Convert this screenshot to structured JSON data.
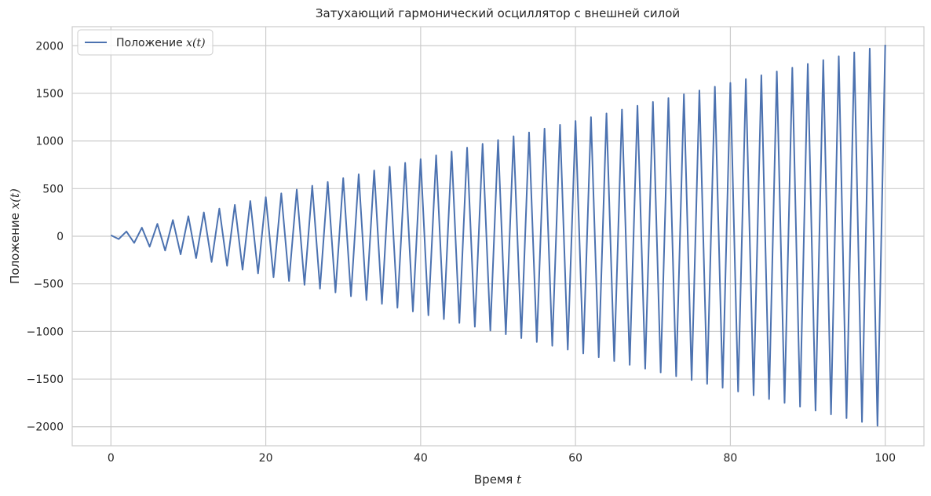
{
  "chart_data": {
    "type": "line",
    "title": "Затухающий гармонический осциллятор с внешней силой",
    "xlabel": "Время",
    "xlabel_var": "t",
    "ylabel": "Положение",
    "ylabel_var": "x(t)",
    "xlim": [
      -5,
      105
    ],
    "ylim": [
      -2200,
      2200
    ],
    "xticks": [
      0,
      20,
      40,
      60,
      80,
      100
    ],
    "yticks": [
      -2000,
      -1500,
      -1000,
      -500,
      0,
      500,
      1000,
      1500,
      2000
    ],
    "ytick_labels": [
      "−2000",
      "−1500",
      "−1000",
      "−500",
      "0",
      "500",
      "1000",
      "1500",
      "2000"
    ],
    "grid": true,
    "legend_position": "top-left",
    "series": [
      {
        "name": "Положение",
        "name_var": "x(t)",
        "color": "#4c72b0",
        "x": [
          0,
          1,
          2,
          3,
          4,
          5,
          6,
          7,
          8,
          9,
          10,
          11,
          12,
          13,
          14,
          15,
          16,
          17,
          18,
          19,
          20,
          21,
          22,
          23,
          24,
          25,
          26,
          27,
          28,
          29,
          30,
          31,
          32,
          33,
          34,
          35,
          36,
          37,
          38,
          39,
          40,
          41,
          42,
          43,
          44,
          45,
          46,
          47,
          48,
          49,
          50,
          51,
          52,
          53,
          54,
          55,
          56,
          57,
          58,
          59,
          60,
          61,
          62,
          63,
          64,
          65,
          66,
          67,
          68,
          69,
          70,
          71,
          72,
          73,
          74,
          75,
          76,
          77,
          78,
          79,
          80,
          81,
          82,
          83,
          84,
          85,
          86,
          87,
          88,
          89,
          90,
          91,
          92,
          93,
          94,
          95,
          96,
          97,
          98,
          99,
          100
        ],
        "y": [
          10,
          -30,
          50,
          -70,
          90,
          -110,
          130,
          -150,
          170,
          -190,
          210,
          -230,
          250,
          -270,
          290,
          -310,
          330,
          -350,
          370,
          -390,
          410,
          -430,
          450,
          -470,
          490,
          -510,
          530,
          -550,
          570,
          -590,
          610,
          -630,
          650,
          -670,
          690,
          -710,
          730,
          -750,
          770,
          -790,
          810,
          -830,
          850,
          -870,
          890,
          -910,
          930,
          -950,
          970,
          -990,
          1010,
          -1030,
          1050,
          -1070,
          1090,
          -1110,
          1130,
          -1150,
          1170,
          -1190,
          1210,
          -1230,
          1250,
          -1270,
          1290,
          -1310,
          1330,
          -1350,
          1370,
          -1390,
          1410,
          -1430,
          1450,
          -1470,
          1490,
          -1510,
          1530,
          -1550,
          1570,
          -1590,
          1610,
          -1630,
          1650,
          -1670,
          1690,
          -1710,
          1730,
          -1750,
          1770,
          -1790,
          1810,
          -1830,
          1850,
          -1870,
          1890,
          -1910,
          1930,
          -1950,
          1970,
          -1990,
          2010
        ]
      }
    ]
  }
}
